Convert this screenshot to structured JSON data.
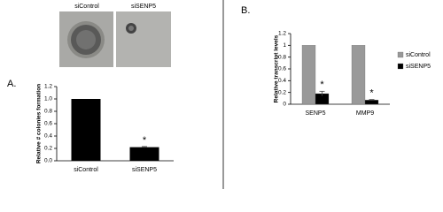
{
  "chart_data": [
    {
      "type": "bar",
      "panel": "A.",
      "image_labels": [
        "siControl",
        "siSENP5"
      ],
      "y_label": "Relative # colonies formation",
      "categories": [
        "siControl",
        "siSENP5"
      ],
      "values": [
        1,
        0.22
      ],
      "errors": [
        0,
        0.01
      ],
      "color": "#000000",
      "annotations": [
        null,
        "*"
      ],
      "ylim": [
        0,
        1.2
      ],
      "yticks": [
        {
          "value": 0,
          "label": "0.0"
        },
        0.2,
        0.4,
        0.6,
        0.8,
        {
          "value": 1,
          "label": "1.0"
        },
        1.2
      ]
    },
    {
      "type": "grouped_bar",
      "panel": "B.",
      "y_label": "Relative transcript levels",
      "categories": [
        "SENP5",
        "MMP9"
      ],
      "series": [
        {
          "name": "siControl",
          "color": "#999999",
          "values": [
            1,
            1
          ],
          "errors": [
            0,
            0
          ]
        },
        {
          "name": "siSENP5",
          "color": "#000000",
          "values": [
            0.18,
            0.07
          ],
          "errors": [
            0.04,
            0.01
          ]
        }
      ],
      "annotations": [
        "*",
        "*"
      ],
      "legend": "right",
      "ylim": [
        0,
        1.2
      ],
      "yticks": [
        0,
        0.2,
        0.4,
        0.6,
        0.8,
        1,
        1.2
      ]
    }
  ]
}
